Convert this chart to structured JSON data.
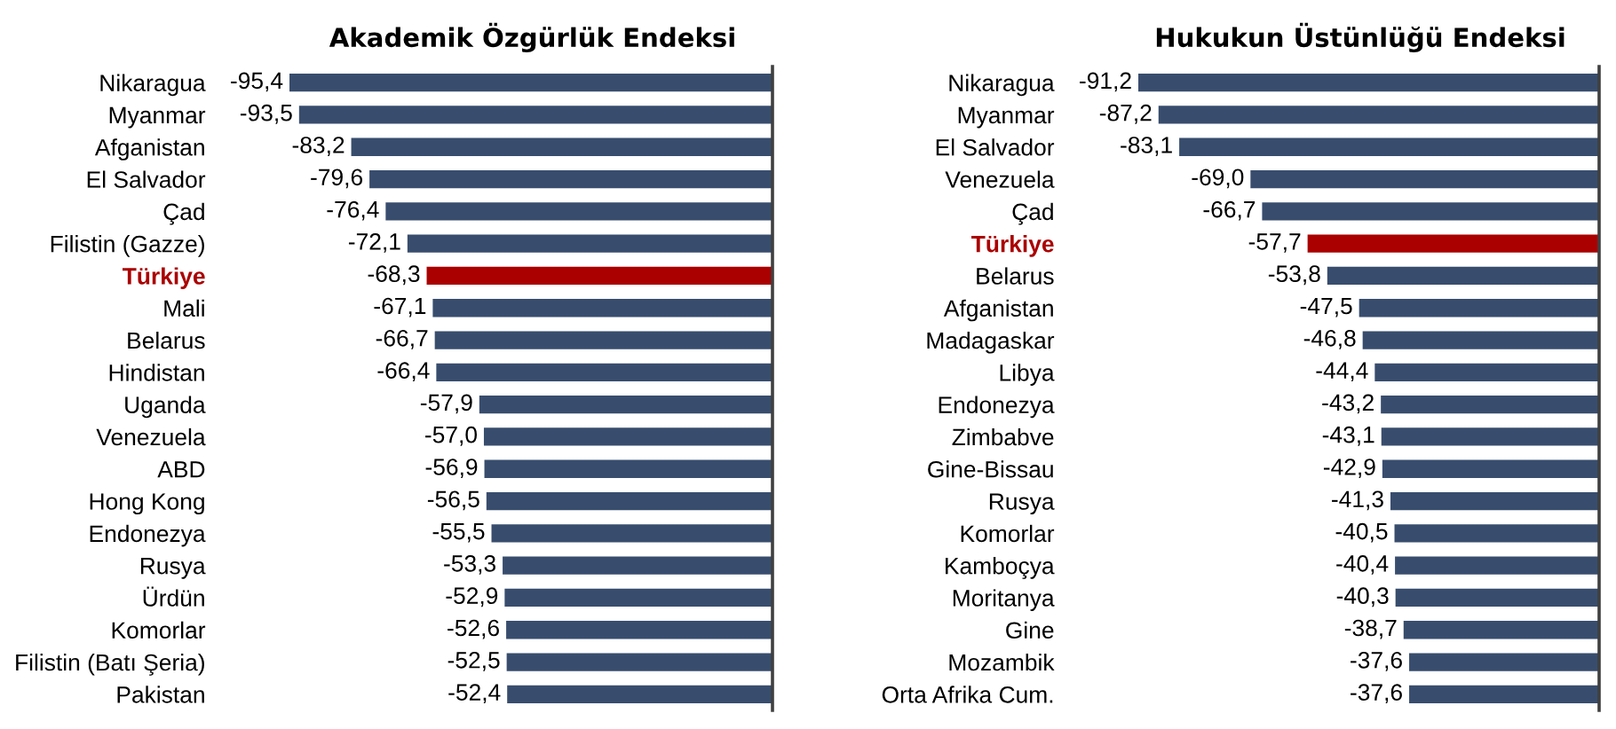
{
  "chart_data": [
    {
      "type": "bar",
      "orientation": "horizontal",
      "title": "Akademik Özgürlük Endeksi",
      "tick_labels": "y",
      "categories": [
        "Nikaragua",
        "Myanmar",
        "Afganistan",
        "El Salvador",
        "Çad",
        "Filistin (Gazze)",
        "Türkiye",
        "Mali",
        "Belarus",
        "Hindistan",
        "Uganda",
        "Venezuela",
        "ABD",
        "Hong Kong",
        "Endonezya",
        "Rusya",
        "Ürdün",
        "Komorlar",
        "Filistin (Batı Şeria)",
        "Pakistan"
      ],
      "values": [
        -95.4,
        -93.5,
        -83.2,
        -79.6,
        -76.4,
        -72.1,
        -68.3,
        -67.1,
        -66.7,
        -66.4,
        -57.9,
        -57.0,
        -56.9,
        -56.5,
        -55.5,
        -53.3,
        -52.9,
        -52.6,
        -52.5,
        -52.4
      ],
      "value_labels": [
        "-95,4",
        "-93,5",
        "-83,2",
        "-79,6",
        "-76,4",
        "-72,1",
        "-68,3",
        "-67,1",
        "-66,7",
        "-66,4",
        "-57,9",
        "-57,0",
        "-56,9",
        "-56,5",
        "-55,5",
        "-53,3",
        "-52,9",
        "-52,6",
        "-52,5",
        "-52,4"
      ],
      "colors": [
        "#384d6e",
        "#384d6e",
        "#384d6e",
        "#384d6e",
        "#384d6e",
        "#384d6e",
        "#aa0000",
        "#384d6e",
        "#384d6e",
        "#384d6e",
        "#384d6e",
        "#384d6e",
        "#384d6e",
        "#384d6e",
        "#384d6e",
        "#384d6e",
        "#384d6e",
        "#384d6e",
        "#384d6e",
        "#384d6e"
      ]
    },
    {
      "type": "bar",
      "orientation": "horizontal",
      "title": "Hukukun Üstünlüğü Endeksi",
      "tick_labels": "y",
      "categories": [
        "Nikaragua",
        "Myanmar",
        "El Salvador",
        "Venezuela",
        "Çad",
        "Türkiye",
        "Belarus",
        "Afganistan",
        "Madagaskar",
        "Libya",
        "Endonezya",
        "Zimbabve",
        "Gine-Bissau",
        "Rusya",
        "Komorlar",
        "Kamboçya",
        "Moritanya",
        "Gine",
        "Mozambik",
        "Orta Afrika Cum."
      ],
      "values": [
        -91.2,
        -87.2,
        -83.1,
        -69.0,
        -66.7,
        -57.7,
        -53.8,
        -47.5,
        -46.8,
        -44.4,
        -43.2,
        -43.1,
        -42.9,
        -41.3,
        -40.5,
        -40.4,
        -40.3,
        -38.7,
        -37.6,
        -37.6
      ],
      "value_labels": [
        "-91,2",
        "-87,2",
        "-83,1",
        "-69,0",
        "-66,7",
        "-57,7",
        "-53,8",
        "-47,5",
        "-46,8",
        "-44,4",
        "-43,2",
        "-43,1",
        "-42,9",
        "-41,3",
        "-40,5",
        "-40,4",
        "-40,3",
        "-38,7",
        "-37,6",
        "-37,6"
      ],
      "colors": [
        "#384d6e",
        "#384d6e",
        "#384d6e",
        "#384d6e",
        "#384d6e",
        "#aa0000",
        "#384d6e",
        "#384d6e",
        "#384d6e",
        "#384d6e",
        "#384d6e",
        "#384d6e",
        "#384d6e",
        "#384d6e",
        "#384d6e",
        "#384d6e",
        "#384d6e",
        "#384d6e",
        "#384d6e",
        "#384d6e"
      ]
    }
  ]
}
